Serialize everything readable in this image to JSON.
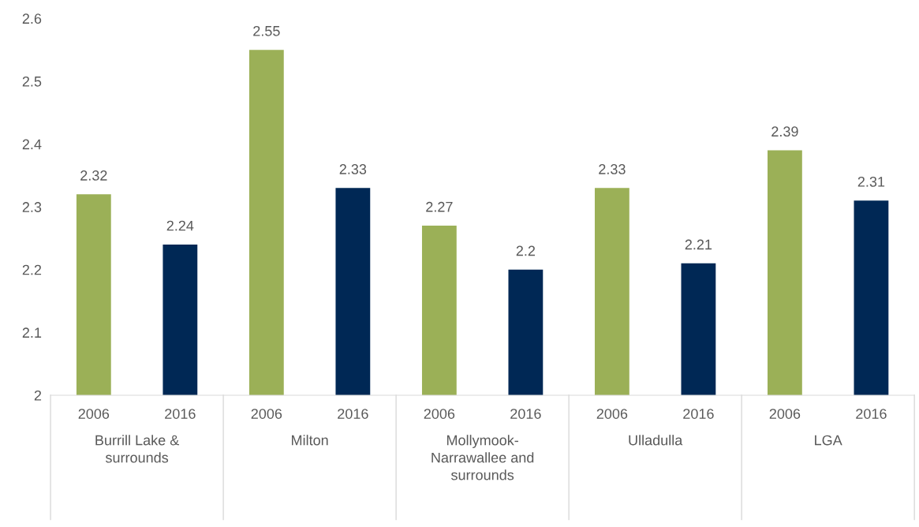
{
  "chart_data": {
    "type": "bar",
    "categories": [
      "2006",
      "2016",
      "2006",
      "2016",
      "2006",
      "2016",
      "2006",
      "2016",
      "2006",
      "2016"
    ],
    "values": [
      2.32,
      2.24,
      2.55,
      2.33,
      2.27,
      2.2,
      2.33,
      2.21,
      2.39,
      2.31
    ],
    "colors": [
      "#9bb057",
      "#002855",
      "#9bb057",
      "#002855",
      "#9bb057",
      "#002855",
      "#9bb057",
      "#002855",
      "#9bb057",
      "#002855"
    ],
    "ylim": [
      2,
      2.6
    ],
    "yticks": [
      2,
      2.1,
      2.2,
      2.3,
      2.4,
      2.5,
      2.6
    ],
    "data_labels": true,
    "grid": false,
    "legend": false,
    "annotations": [
      "Burrill Lake &\nsurrounds",
      "Milton",
      "Mollymook-\nNarrawallee and\nsurrounds",
      "Ulladulla",
      "LGA"
    ]
  }
}
